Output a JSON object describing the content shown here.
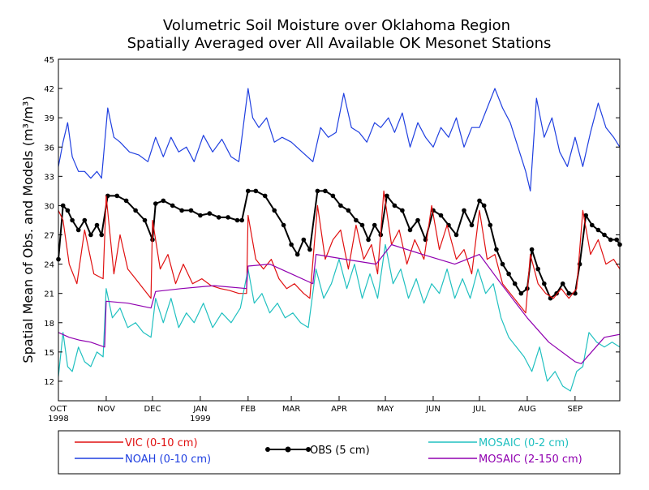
{
  "chart_data": {
    "type": "line",
    "title": [
      "Volumetric Soil Moisture over Oklahoma Region",
      "Spatially Averaged over All Available OK Mesonet Stations"
    ],
    "ylabel": "Spatial Mean of Obs. and Models (m³/m³)",
    "ylim": [
      10,
      45
    ],
    "yticks": [
      12,
      15,
      18,
      21,
      24,
      27,
      30,
      33,
      36,
      39,
      42,
      45
    ],
    "xlim": [
      "1998-10-01",
      "1999-09-30"
    ],
    "xticks": [
      {
        "label": "OCT",
        "sub": "1998",
        "date": "1998-10-01"
      },
      {
        "label": "NOV",
        "date": "1998-11-01"
      },
      {
        "label": "DEC",
        "date": "1998-12-01"
      },
      {
        "label": "JAN",
        "sub": "1999",
        "date": "1999-01-01"
      },
      {
        "label": "FEB",
        "date": "1999-02-01"
      },
      {
        "label": "MAR",
        "date": "1999-03-01"
      },
      {
        "label": "APR",
        "date": "1999-04-01"
      },
      {
        "label": "MAY",
        "date": "1999-05-01"
      },
      {
        "label": "JUN",
        "date": "1999-06-01"
      },
      {
        "label": "JUL",
        "date": "1999-07-01"
      },
      {
        "label": "AUG",
        "date": "1999-08-01"
      },
      {
        "label": "SEP",
        "date": "1999-09-01"
      }
    ],
    "series": [
      {
        "name": "NOAH (0-10 cm)",
        "color": "#1f3fe0",
        "markers": false,
        "x": [
          "1998-10-01",
          "1998-10-04",
          "1998-10-07",
          "1998-10-10",
          "1998-10-14",
          "1998-10-18",
          "1998-10-22",
          "1998-10-26",
          "1998-10-29",
          "1998-11-02",
          "1998-11-06",
          "1998-11-10",
          "1998-11-16",
          "1998-11-22",
          "1998-11-28",
          "1998-12-03",
          "1998-12-08",
          "1998-12-13",
          "1998-12-18",
          "1998-12-23",
          "1998-12-28",
          "1999-01-03",
          "1999-01-09",
          "1999-01-15",
          "1999-01-21",
          "1999-01-26",
          "1999-02-01",
          "1999-02-04",
          "1999-02-08",
          "1999-02-13",
          "1999-02-18",
          "1999-02-23",
          "1999-03-01",
          "1999-03-08",
          "1999-03-15",
          "1999-03-20",
          "1999-03-25",
          "1999-03-30",
          "1999-04-04",
          "1999-04-09",
          "1999-04-14",
          "1999-04-19",
          "1999-04-24",
          "1999-04-28",
          "1999-05-03",
          "1999-05-07",
          "1999-05-12",
          "1999-05-17",
          "1999-05-22",
          "1999-05-27",
          "1999-06-01",
          "1999-06-06",
          "1999-06-11",
          "1999-06-16",
          "1999-06-21",
          "1999-06-26",
          "1999-07-01",
          "1999-07-06",
          "1999-07-11",
          "1999-07-16",
          "1999-07-21",
          "1999-07-26",
          "1999-07-31",
          "1999-08-03",
          "1999-08-07",
          "1999-08-12",
          "1999-08-17",
          "1999-08-22",
          "1999-08-27",
          "1999-09-01",
          "1999-09-06",
          "1999-09-11",
          "1999-09-16",
          "1999-09-21",
          "1999-09-26",
          "1999-09-30"
        ],
        "y": [
          34.0,
          36.5,
          38.5,
          35.0,
          33.5,
          33.5,
          32.8,
          33.5,
          32.8,
          40.0,
          37.0,
          36.5,
          35.5,
          35.2,
          34.5,
          37.0,
          35.0,
          37.0,
          35.5,
          36.0,
          34.5,
          37.2,
          35.5,
          36.8,
          35.0,
          34.5,
          42.0,
          39.0,
          38.0,
          39.0,
          36.5,
          37.0,
          36.5,
          35.5,
          34.5,
          38.0,
          37.0,
          37.5,
          41.5,
          38.0,
          37.5,
          36.5,
          38.5,
          38.0,
          39.0,
          37.5,
          39.5,
          36.0,
          38.5,
          37.0,
          36.0,
          38.0,
          37.0,
          39.0,
          36.0,
          38.0,
          38.0,
          40.0,
          42.0,
          40.0,
          38.5,
          36.0,
          33.5,
          31.5,
          41.0,
          37.0,
          39.0,
          35.5,
          34.0,
          37.0,
          34.0,
          37.5,
          40.5,
          38.0,
          37.0,
          36.0
        ]
      },
      {
        "name": "OBS (5 cm)",
        "color": "#000000",
        "markers": true,
        "x": [
          "1998-10-01",
          "1998-10-04",
          "1998-10-07",
          "1998-10-10",
          "1998-10-14",
          "1998-10-18",
          "1998-10-22",
          "1998-10-26",
          "1998-10-29",
          "1998-11-02",
          "1998-11-08",
          "1998-11-14",
          "1998-11-20",
          "1998-11-26",
          "1998-12-01",
          "1998-12-03",
          "1998-12-08",
          "1998-12-14",
          "1998-12-20",
          "1998-12-26",
          "1999-01-01",
          "1999-01-07",
          "1999-01-13",
          "1999-01-19",
          "1999-01-25",
          "1999-01-28",
          "1999-02-01",
          "1999-02-06",
          "1999-02-12",
          "1999-02-18",
          "1999-02-24",
          "1999-03-01",
          "1999-03-05",
          "1999-03-09",
          "1999-03-13",
          "1999-03-18",
          "1999-03-23",
          "1999-03-28",
          "1999-04-02",
          "1999-04-07",
          "1999-04-12",
          "1999-04-16",
          "1999-04-20",
          "1999-04-24",
          "1999-04-28",
          "1999-05-02",
          "1999-05-07",
          "1999-05-12",
          "1999-05-17",
          "1999-05-22",
          "1999-05-27",
          "1999-06-01",
          "1999-06-06",
          "1999-06-11",
          "1999-06-16",
          "1999-06-21",
          "1999-06-26",
          "1999-07-01",
          "1999-07-04",
          "1999-07-08",
          "1999-07-12",
          "1999-07-16",
          "1999-07-20",
          "1999-07-24",
          "1999-07-28",
          "1999-08-01",
          "1999-08-04",
          "1999-08-08",
          "1999-08-12",
          "1999-08-16",
          "1999-08-20",
          "1999-08-24",
          "1999-08-28",
          "1999-09-01",
          "1999-09-04",
          "1999-09-08",
          "1999-09-12",
          "1999-09-16",
          "1999-09-20",
          "1999-09-24",
          "1999-09-28",
          "1999-09-30"
        ],
        "y": [
          24.5,
          30.0,
          29.5,
          28.5,
          27.5,
          28.5,
          27.0,
          28.0,
          27.0,
          31.0,
          31.0,
          30.5,
          29.5,
          28.5,
          26.5,
          30.2,
          30.5,
          30.0,
          29.5,
          29.5,
          29.0,
          29.2,
          28.8,
          28.8,
          28.5,
          28.5,
          31.5,
          31.5,
          31.0,
          29.5,
          28.0,
          26.0,
          25.0,
          26.5,
          25.5,
          31.5,
          31.5,
          31.0,
          30.0,
          29.5,
          28.5,
          28.0,
          26.5,
          28.0,
          27.0,
          31.0,
          30.0,
          29.5,
          27.5,
          28.5,
          26.5,
          29.5,
          29.0,
          28.0,
          27.0,
          29.5,
          28.0,
          30.5,
          30.0,
          28.0,
          25.5,
          24.0,
          23.0,
          22.0,
          21.0,
          21.5,
          25.5,
          23.5,
          22.0,
          20.5,
          21.0,
          22.0,
          21.0,
          21.0,
          24.0,
          29.0,
          28.0,
          27.5,
          27.0,
          26.5,
          26.5,
          26.0
        ]
      },
      {
        "name": "VIC (0-10 cm)",
        "color": "#e01010",
        "markers": false,
        "x": [
          "1998-10-01",
          "1998-10-04",
          "1998-10-08",
          "1998-10-13",
          "1998-10-18",
          "1998-10-24",
          "1998-10-30",
          "1998-11-01",
          "1998-11-06",
          "1998-11-10",
          "1998-11-15",
          "1998-11-20",
          "1998-11-25",
          "1998-11-30",
          "1998-12-01",
          "1998-12-06",
          "1998-12-11",
          "1998-12-16",
          "1998-12-21",
          "1998-12-27",
          "1999-01-02",
          "1999-01-08",
          "1999-01-14",
          "1999-01-20",
          "1999-01-26",
          "1999-01-31",
          "1999-02-01",
          "1999-02-06",
          "1999-02-11",
          "1999-02-16",
          "1999-02-21",
          "1999-02-26",
          "1999-03-03",
          "1999-03-09",
          "1999-03-13",
          "1999-03-18",
          "1999-03-23",
          "1999-03-28",
          "1999-04-02",
          "1999-04-07",
          "1999-04-12",
          "1999-04-17",
          "1999-04-22",
          "1999-04-26",
          "1999-04-30",
          "1999-05-05",
          "1999-05-10",
          "1999-05-15",
          "1999-05-20",
          "1999-05-26",
          "1999-05-31",
          "1999-06-05",
          "1999-06-10",
          "1999-06-16",
          "1999-06-21",
          "1999-06-26",
          "1999-07-01",
          "1999-07-06",
          "1999-07-11",
          "1999-07-16",
          "1999-07-21",
          "1999-07-26",
          "1999-07-31",
          "1999-08-03",
          "1999-08-08",
          "1999-08-13",
          "1999-08-18",
          "1999-08-23",
          "1999-08-28",
          "1999-09-02",
          "1999-09-06",
          "1999-09-11",
          "1999-09-16",
          "1999-09-21",
          "1999-09-26",
          "1999-09-30"
        ],
        "y": [
          29.5,
          28.5,
          24.0,
          22.0,
          27.5,
          23.0,
          22.5,
          31.0,
          23.0,
          27.0,
          23.5,
          22.5,
          21.5,
          20.5,
          28.5,
          23.5,
          25.0,
          22.0,
          24.0,
          22.0,
          22.5,
          21.8,
          21.5,
          21.3,
          21.0,
          21.0,
          29.0,
          24.5,
          23.5,
          24.5,
          22.5,
          21.5,
          22.0,
          21.0,
          20.5,
          30.0,
          24.5,
          26.5,
          27.5,
          23.5,
          28.0,
          24.5,
          26.0,
          23.0,
          31.5,
          26.0,
          27.5,
          24.0,
          26.5,
          24.5,
          30.0,
          25.5,
          28.0,
          24.5,
          25.5,
          23.0,
          29.5,
          24.5,
          25.0,
          22.0,
          21.0,
          20.0,
          19.0,
          25.0,
          22.0,
          21.0,
          20.5,
          21.5,
          20.5,
          21.5,
          29.5,
          25.0,
          26.5,
          24.0,
          24.5,
          23.5
        ]
      },
      {
        "name": "MOSAIC (0-2 cm)",
        "color": "#20c0c0",
        "markers": false,
        "x": [
          "1998-10-01",
          "1998-10-04",
          "1998-10-07",
          "1998-10-10",
          "1998-10-14",
          "1998-10-18",
          "1998-10-22",
          "1998-10-26",
          "1998-10-30",
          "1998-11-01",
          "1998-11-05",
          "1998-11-10",
          "1998-11-15",
          "1998-11-20",
          "1998-11-25",
          "1998-11-30",
          "1998-12-03",
          "1998-12-08",
          "1998-12-13",
          "1998-12-18",
          "1998-12-23",
          "1998-12-28",
          "1999-01-03",
          "1999-01-09",
          "1999-01-15",
          "1999-01-21",
          "1999-01-27",
          "1999-02-01",
          "1999-02-05",
          "1999-02-10",
          "1999-02-15",
          "1999-02-20",
          "1999-02-25",
          "1999-03-02",
          "1999-03-07",
          "1999-03-12",
          "1999-03-17",
          "1999-03-22",
          "1999-03-27",
          "1999-04-01",
          "1999-04-06",
          "1999-04-11",
          "1999-04-16",
          "1999-04-21",
          "1999-04-26",
          "1999-05-01",
          "1999-05-06",
          "1999-05-11",
          "1999-05-16",
          "1999-05-21",
          "1999-05-26",
          "1999-05-31",
          "1999-06-05",
          "1999-06-10",
          "1999-06-15",
          "1999-06-20",
          "1999-06-25",
          "1999-06-30",
          "1999-07-05",
          "1999-07-10",
          "1999-07-15",
          "1999-07-20",
          "1999-07-25",
          "1999-07-30",
          "1999-08-04",
          "1999-08-09",
          "1999-08-14",
          "1999-08-19",
          "1999-08-24",
          "1999-08-29",
          "1999-09-02",
          "1999-09-06",
          "1999-09-10",
          "1999-09-15",
          "1999-09-20",
          "1999-09-25",
          "1999-09-30"
        ],
        "y": [
          12.5,
          17.0,
          13.5,
          13.0,
          15.5,
          14.0,
          13.5,
          15.0,
          14.5,
          21.5,
          18.5,
          19.5,
          17.5,
          18.0,
          17.0,
          16.5,
          20.5,
          18.0,
          20.5,
          17.5,
          19.0,
          18.0,
          20.0,
          17.5,
          19.0,
          18.0,
          19.5,
          23.5,
          20.0,
          21.0,
          19.0,
          20.0,
          18.5,
          19.0,
          18.0,
          17.5,
          23.5,
          20.5,
          22.0,
          24.5,
          21.5,
          24.0,
          20.5,
          23.0,
          20.5,
          26.0,
          22.0,
          23.5,
          20.5,
          22.5,
          20.0,
          22.0,
          21.0,
          23.5,
          20.5,
          22.5,
          20.5,
          23.5,
          21.0,
          22.0,
          18.5,
          16.5,
          15.5,
          14.5,
          13.0,
          15.5,
          12.0,
          13.0,
          11.5,
          11.0,
          13.0,
          13.5,
          17.0,
          16.0,
          15.5,
          16.0,
          15.5
        ]
      },
      {
        "name": "MOSAIC (2-150 cm)",
        "color": "#9000b0",
        "markers": false,
        "x": [
          "1998-10-01",
          "1998-10-08",
          "1998-10-15",
          "1998-10-22",
          "1998-10-31",
          "1998-11-01",
          "1998-11-15",
          "1998-11-30",
          "1998-12-03",
          "1998-12-20",
          "1999-01-10",
          "1999-01-31",
          "1999-02-01",
          "1999-02-15",
          "1999-03-01",
          "1999-03-15",
          "1999-03-17",
          "1999-04-05",
          "1999-04-25",
          "1999-05-05",
          "1999-05-25",
          "1999-06-15",
          "1999-07-01",
          "1999-07-15",
          "1999-08-01",
          "1999-08-15",
          "1999-09-01",
          "1999-09-05",
          "1999-09-20",
          "1999-09-30"
        ],
        "y": [
          17.0,
          16.5,
          16.2,
          16.0,
          15.5,
          20.2,
          20.0,
          19.5,
          21.2,
          21.5,
          21.8,
          21.5,
          23.8,
          24.0,
          23.0,
          22.0,
          25.0,
          24.5,
          24.0,
          26.0,
          25.0,
          24.0,
          25.0,
          22.0,
          18.5,
          16.0,
          14.0,
          13.8,
          16.5,
          16.8
        ]
      }
    ],
    "legend": {
      "placement": "bottom",
      "columns": [
        [
          "VIC (0-10 cm)",
          "NOAH (0-10 cm)"
        ],
        [
          "OBS (5 cm)"
        ],
        [
          "MOSAIC (0-2 cm)",
          "MOSAIC (2-150 cm)"
        ]
      ]
    }
  }
}
